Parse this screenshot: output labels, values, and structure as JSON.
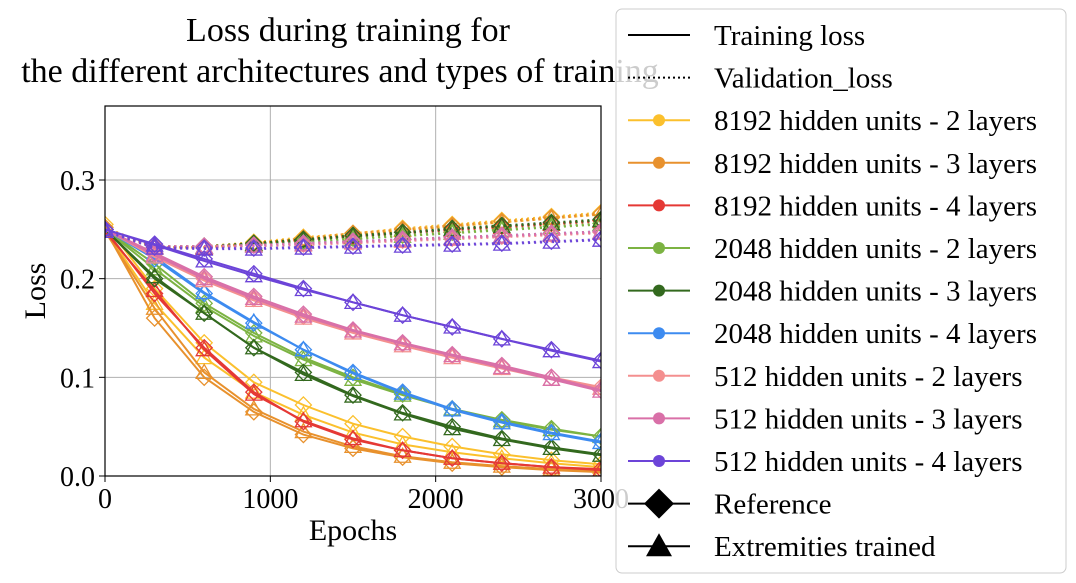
{
  "chart_data": {
    "type": "line",
    "title": [
      "Loss during training for",
      "the different architectures and types of training"
    ],
    "xlabel": "Epochs",
    "ylabel": "Loss",
    "xlim": [
      0,
      3000
    ],
    "ylim": [
      0,
      0.375
    ],
    "xticks": [
      0,
      1000,
      2000,
      3000
    ],
    "xtick_labels": [
      "0",
      "1000",
      "2000",
      "3000"
    ],
    "yticks": [
      0,
      0.1,
      0.2,
      0.3
    ],
    "ytick_labels": [
      "0.0",
      "0.1",
      "0.2",
      "0.3"
    ],
    "grid": true,
    "legend_placement": "outside-right",
    "legend": [
      {
        "label": "Training loss",
        "kind": "solid"
      },
      {
        "label": "Validation_loss",
        "kind": "dotted"
      },
      {
        "label": "8192 hidden units - 2 layers",
        "color": "#fbc02d",
        "kind": "series"
      },
      {
        "label": "8192 hidden units - 3 layers",
        "color": "#e8912d",
        "kind": "series"
      },
      {
        "label": "8192 hidden units - 4 layers",
        "color": "#e53935",
        "kind": "series"
      },
      {
        "label": "2048 hidden units - 2 layers",
        "color": "#7cb342",
        "kind": "series"
      },
      {
        "label": "2048 hidden units - 3 layers",
        "color": "#33691e",
        "kind": "series"
      },
      {
        "label": "2048 hidden units - 4 layers",
        "color": "#3d8bf0",
        "kind": "series"
      },
      {
        "label": "512 hidden units - 2 layers",
        "color": "#f48f8f",
        "kind": "series"
      },
      {
        "label": "512 hidden units - 3 layers",
        "color": "#d970a8",
        "kind": "series"
      },
      {
        "label": "512 hidden units - 4 layers",
        "color": "#6c44d8",
        "kind": "series"
      },
      {
        "label": "Reference",
        "kind": "diamond"
      },
      {
        "label": "Extremities trained",
        "kind": "triangle"
      }
    ],
    "marker_epochs": [
      0,
      300,
      600,
      900,
      1200,
      1500,
      1800,
      2100,
      2400,
      2700,
      3000
    ],
    "series": [
      {
        "color": "#fbc02d",
        "train_reference": [
          0.255,
          0.19,
          0.135,
          0.095,
          0.072,
          0.053,
          0.04,
          0.03,
          0.022,
          0.016,
          0.012
        ],
        "train_extremities": [
          0.25,
          0.175,
          0.12,
          0.085,
          0.062,
          0.044,
          0.032,
          0.024,
          0.018,
          0.013,
          0.009
        ],
        "val_reference": [
          0.25,
          0.233,
          0.233,
          0.237,
          0.242,
          0.246,
          0.251,
          0.255,
          0.259,
          0.263,
          0.267
        ],
        "val_extremities": [
          0.248,
          0.232,
          0.232,
          0.235,
          0.24,
          0.244,
          0.249,
          0.253,
          0.257,
          0.261,
          0.265
        ]
      },
      {
        "color": "#e8912d",
        "train_reference": [
          0.25,
          0.16,
          0.1,
          0.065,
          0.042,
          0.028,
          0.019,
          0.013,
          0.009,
          0.006,
          0.004
        ],
        "train_extremities": [
          0.248,
          0.17,
          0.105,
          0.068,
          0.045,
          0.03,
          0.02,
          0.014,
          0.01,
          0.007,
          0.005
        ],
        "val_reference": [
          0.252,
          0.232,
          0.232,
          0.236,
          0.241,
          0.246,
          0.25,
          0.254,
          0.258,
          0.262,
          0.266
        ],
        "val_extremities": [
          0.25,
          0.231,
          0.231,
          0.235,
          0.24,
          0.245,
          0.249,
          0.253,
          0.257,
          0.261,
          0.265
        ]
      },
      {
        "color": "#e53935",
        "train_reference": [
          0.25,
          0.185,
          0.13,
          0.085,
          0.055,
          0.037,
          0.026,
          0.018,
          0.013,
          0.009,
          0.007
        ],
        "train_extremities": [
          0.248,
          0.188,
          0.128,
          0.083,
          0.056,
          0.038,
          0.026,
          0.018,
          0.013,
          0.009,
          0.006
        ],
        "val_reference": [
          0.25,
          0.232,
          0.232,
          0.235,
          0.239,
          0.243,
          0.247,
          0.25,
          0.253,
          0.256,
          0.259
        ],
        "val_extremities": [
          0.248,
          0.231,
          0.231,
          0.234,
          0.238,
          0.242,
          0.246,
          0.249,
          0.252,
          0.255,
          0.258
        ]
      },
      {
        "color": "#7cb342",
        "train_reference": [
          0.25,
          0.215,
          0.175,
          0.145,
          0.12,
          0.1,
          0.083,
          0.068,
          0.057,
          0.048,
          0.04
        ],
        "train_extremities": [
          0.25,
          0.21,
          0.172,
          0.142,
          0.118,
          0.098,
          0.082,
          0.068,
          0.056,
          0.047,
          0.04
        ],
        "val_reference": [
          0.25,
          0.233,
          0.233,
          0.235,
          0.238,
          0.241,
          0.244,
          0.247,
          0.25,
          0.253,
          0.256
        ],
        "val_extremities": [
          0.248,
          0.232,
          0.232,
          0.234,
          0.237,
          0.24,
          0.243,
          0.246,
          0.249,
          0.252,
          0.255
        ]
      },
      {
        "color": "#33691e",
        "train_reference": [
          0.25,
          0.2,
          0.165,
          0.13,
          0.105,
          0.082,
          0.064,
          0.05,
          0.038,
          0.029,
          0.022
        ],
        "train_extremities": [
          0.25,
          0.202,
          0.165,
          0.13,
          0.103,
          0.081,
          0.063,
          0.048,
          0.037,
          0.028,
          0.021
        ],
        "val_reference": [
          0.25,
          0.233,
          0.233,
          0.236,
          0.24,
          0.244,
          0.247,
          0.251,
          0.254,
          0.257,
          0.26
        ],
        "val_extremities": [
          0.248,
          0.232,
          0.232,
          0.235,
          0.239,
          0.243,
          0.246,
          0.25,
          0.253,
          0.256,
          0.259
        ]
      },
      {
        "color": "#3d8bf0",
        "train_reference": [
          0.25,
          0.22,
          0.185,
          0.155,
          0.128,
          0.105,
          0.085,
          0.068,
          0.055,
          0.044,
          0.035
        ],
        "train_extremities": [
          0.25,
          0.222,
          0.186,
          0.156,
          0.128,
          0.104,
          0.084,
          0.067,
          0.054,
          0.043,
          0.034
        ],
        "val_reference": [
          0.25,
          0.233,
          0.233,
          0.234,
          0.236,
          0.238,
          0.24,
          0.242,
          0.244,
          0.246,
          0.248
        ],
        "val_extremities": [
          0.248,
          0.232,
          0.232,
          0.233,
          0.235,
          0.237,
          0.239,
          0.241,
          0.243,
          0.245,
          0.247
        ]
      },
      {
        "color": "#f48f8f",
        "train_reference": [
          0.25,
          0.225,
          0.2,
          0.18,
          0.162,
          0.147,
          0.134,
          0.122,
          0.111,
          0.1,
          0.09
        ],
        "train_extremities": [
          0.25,
          0.222,
          0.198,
          0.178,
          0.16,
          0.145,
          0.132,
          0.12,
          0.109,
          0.098,
          0.089
        ],
        "val_reference": [
          0.25,
          0.233,
          0.233,
          0.234,
          0.235,
          0.237,
          0.239,
          0.241,
          0.243,
          0.245,
          0.247
        ],
        "val_extremities": [
          0.248,
          0.232,
          0.232,
          0.233,
          0.234,
          0.236,
          0.238,
          0.24,
          0.242,
          0.244,
          0.246
        ]
      },
      {
        "color": "#d970a8",
        "train_reference": [
          0.25,
          0.226,
          0.202,
          0.182,
          0.164,
          0.148,
          0.135,
          0.123,
          0.112,
          0.1,
          0.087
        ],
        "train_extremities": [
          0.25,
          0.224,
          0.2,
          0.18,
          0.162,
          0.147,
          0.134,
          0.122,
          0.11,
          0.098,
          0.086
        ],
        "val_reference": [
          0.25,
          0.233,
          0.233,
          0.234,
          0.236,
          0.238,
          0.24,
          0.242,
          0.244,
          0.246,
          0.248
        ],
        "val_extremities": [
          0.248,
          0.232,
          0.232,
          0.233,
          0.235,
          0.237,
          0.239,
          0.241,
          0.243,
          0.245,
          0.247
        ]
      },
      {
        "color": "#6c44d8",
        "train_reference": [
          0.25,
          0.235,
          0.22,
          0.205,
          0.19,
          0.176,
          0.163,
          0.151,
          0.139,
          0.128,
          0.117
        ],
        "train_extremities": [
          0.25,
          0.234,
          0.218,
          0.203,
          0.189,
          0.176,
          0.163,
          0.151,
          0.139,
          0.127,
          0.116
        ],
        "val_reference": [
          0.25,
          0.232,
          0.231,
          0.231,
          0.232,
          0.233,
          0.234,
          0.235,
          0.236,
          0.238,
          0.24
        ],
        "val_extremities": [
          0.248,
          0.231,
          0.23,
          0.23,
          0.231,
          0.232,
          0.233,
          0.234,
          0.235,
          0.237,
          0.239
        ]
      }
    ]
  }
}
